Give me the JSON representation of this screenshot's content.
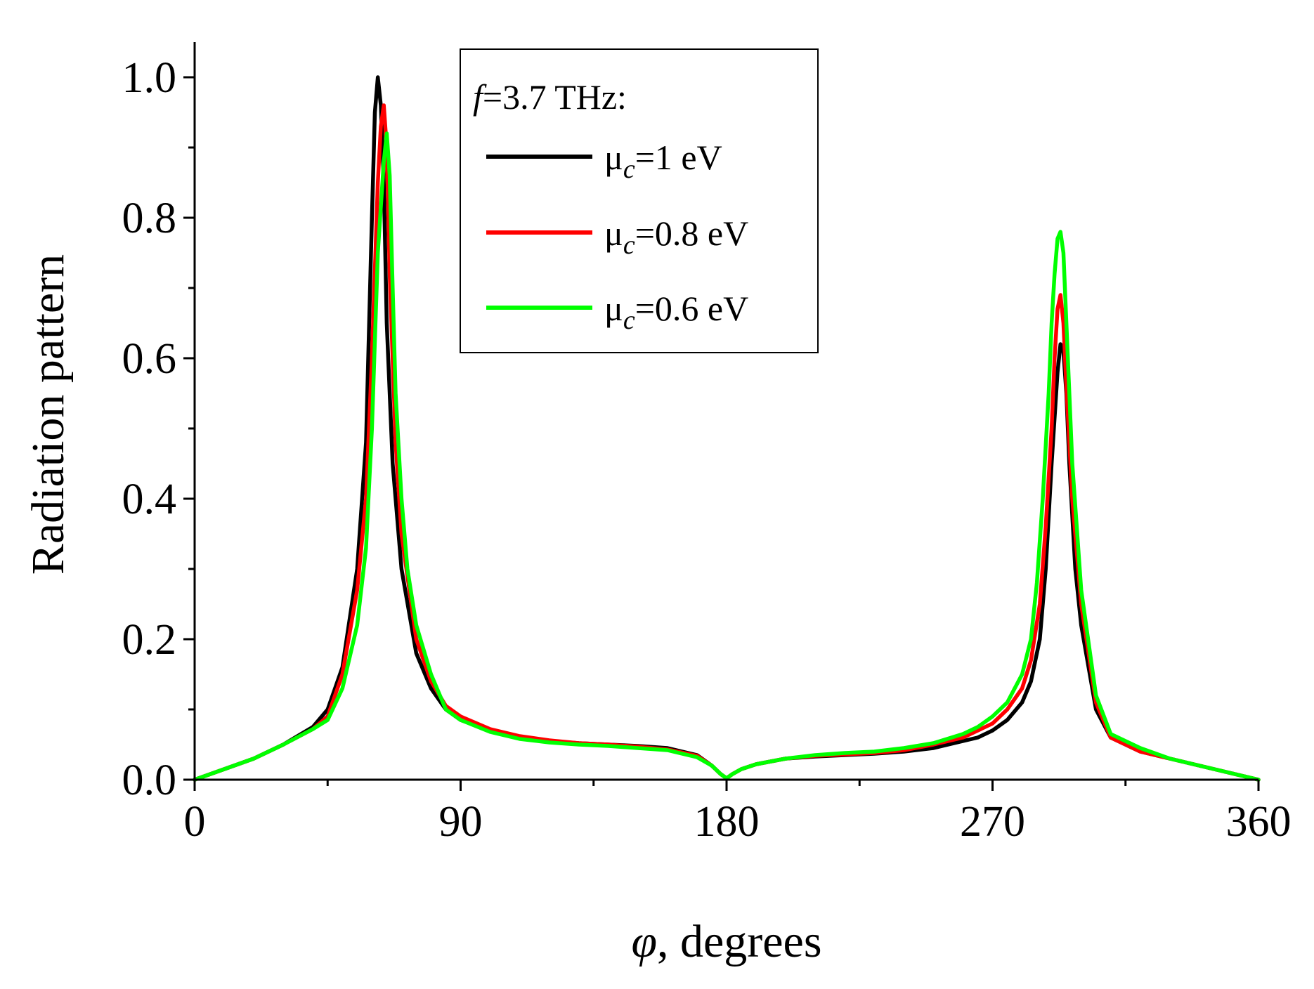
{
  "chart_data": {
    "type": "line",
    "title": "",
    "xlabel_symbol": "φ",
    "xlabel_rest": ", degrees",
    "ylabel": "Radiation pattern",
    "xlim": [
      0,
      360
    ],
    "ylim": [
      0,
      1.05
    ],
    "xticks": [
      0,
      90,
      180,
      270,
      360
    ],
    "xtick_labels": [
      "0",
      "90",
      "180",
      "270",
      "360"
    ],
    "x_minor_step": 45,
    "yticks": [
      0,
      0.2,
      0.4,
      0.6,
      0.8,
      1.0
    ],
    "ytick_labels": [
      "0.0",
      "0.2",
      "0.4",
      "0.6",
      "0.8",
      "1.0"
    ],
    "y_minor_step": 0.1,
    "grid": false,
    "legend": {
      "position": "top-center",
      "title_symbol": "f",
      "title_rest": "=3.7 THz:",
      "entries": [
        {
          "prefix": "μ",
          "sub": "c",
          "suffix": "=1 eV"
        },
        {
          "prefix": "μ",
          "sub": "c",
          "suffix": "=0.8 eV"
        },
        {
          "prefix": "μ",
          "sub": "c",
          "suffix": "=0.6 eV"
        }
      ]
    },
    "series": [
      {
        "name": "μc=1 eV",
        "color": "#000000",
        "x": [
          0,
          10,
          20,
          30,
          40,
          45,
          50,
          55,
          58,
          60,
          61,
          62,
          63,
          64,
          65,
          67,
          70,
          75,
          80,
          85,
          90,
          100,
          110,
          120,
          130,
          140,
          150,
          160,
          170,
          175,
          178,
          180,
          182,
          185,
          190,
          200,
          210,
          220,
          230,
          240,
          250,
          260,
          265,
          270,
          275,
          280,
          283,
          286,
          288,
          290,
          292,
          293,
          294,
          295,
          296,
          298,
          300,
          305,
          310,
          320,
          330,
          340,
          350,
          360
        ],
        "y": [
          0,
          0.015,
          0.03,
          0.05,
          0.075,
          0.1,
          0.16,
          0.3,
          0.48,
          0.8,
          0.95,
          1.0,
          0.96,
          0.85,
          0.65,
          0.45,
          0.3,
          0.18,
          0.13,
          0.1,
          0.085,
          0.07,
          0.06,
          0.055,
          0.052,
          0.05,
          0.048,
          0.045,
          0.035,
          0.02,
          0.008,
          0.002,
          0.008,
          0.015,
          0.022,
          0.03,
          0.033,
          0.035,
          0.037,
          0.04,
          0.045,
          0.055,
          0.06,
          0.07,
          0.085,
          0.11,
          0.14,
          0.2,
          0.3,
          0.45,
          0.58,
          0.62,
          0.61,
          0.55,
          0.45,
          0.3,
          0.22,
          0.1,
          0.06,
          0.04,
          0.03,
          0.02,
          0.01,
          0
        ]
      },
      {
        "name": "μc=0.8 eV",
        "color": "#ff0000",
        "x": [
          0,
          10,
          20,
          30,
          40,
          45,
          50,
          55,
          58,
          60,
          62,
          63,
          64,
          65,
          66,
          68,
          70,
          75,
          80,
          85,
          90,
          100,
          110,
          120,
          130,
          140,
          150,
          160,
          170,
          175,
          178,
          180,
          182,
          185,
          190,
          200,
          210,
          220,
          230,
          240,
          250,
          260,
          265,
          270,
          275,
          280,
          283,
          286,
          288,
          290,
          291,
          292,
          293,
          294,
          295,
          297,
          300,
          305,
          310,
          320,
          330,
          340,
          350,
          360
        ],
        "y": [
          0,
          0.015,
          0.03,
          0.05,
          0.072,
          0.09,
          0.15,
          0.27,
          0.4,
          0.6,
          0.85,
          0.93,
          0.96,
          0.9,
          0.72,
          0.48,
          0.35,
          0.2,
          0.14,
          0.105,
          0.09,
          0.072,
          0.062,
          0.056,
          0.052,
          0.05,
          0.047,
          0.043,
          0.034,
          0.02,
          0.008,
          0.002,
          0.008,
          0.015,
          0.022,
          0.03,
          0.034,
          0.036,
          0.038,
          0.042,
          0.05,
          0.06,
          0.07,
          0.08,
          0.1,
          0.13,
          0.17,
          0.25,
          0.36,
          0.5,
          0.6,
          0.67,
          0.69,
          0.65,
          0.56,
          0.4,
          0.25,
          0.11,
          0.06,
          0.04,
          0.03,
          0.02,
          0.01,
          0
        ]
      },
      {
        "name": "μc=0.6 eV",
        "color": "#00ff00",
        "x": [
          0,
          10,
          20,
          30,
          40,
          45,
          50,
          55,
          58,
          60,
          62,
          64,
          65,
          66,
          67,
          68,
          70,
          72,
          75,
          80,
          85,
          90,
          100,
          110,
          120,
          130,
          140,
          150,
          160,
          170,
          175,
          178,
          180,
          182,
          185,
          190,
          200,
          210,
          220,
          230,
          240,
          250,
          260,
          265,
          270,
          275,
          280,
          283,
          285,
          287,
          289,
          290,
          291,
          292,
          293,
          294,
          295,
          297,
          300,
          305,
          310,
          320,
          330,
          340,
          350,
          360
        ],
        "y": [
          0,
          0.015,
          0.03,
          0.05,
          0.072,
          0.085,
          0.13,
          0.22,
          0.33,
          0.5,
          0.75,
          0.88,
          0.92,
          0.86,
          0.7,
          0.55,
          0.4,
          0.3,
          0.22,
          0.15,
          0.1,
          0.085,
          0.068,
          0.058,
          0.053,
          0.05,
          0.048,
          0.045,
          0.042,
          0.032,
          0.02,
          0.008,
          0.002,
          0.008,
          0.015,
          0.022,
          0.03,
          0.035,
          0.038,
          0.04,
          0.045,
          0.052,
          0.065,
          0.075,
          0.09,
          0.11,
          0.15,
          0.2,
          0.28,
          0.4,
          0.55,
          0.65,
          0.72,
          0.77,
          0.78,
          0.75,
          0.65,
          0.45,
          0.27,
          0.12,
          0.065,
          0.045,
          0.03,
          0.02,
          0.01,
          0
        ]
      }
    ]
  }
}
